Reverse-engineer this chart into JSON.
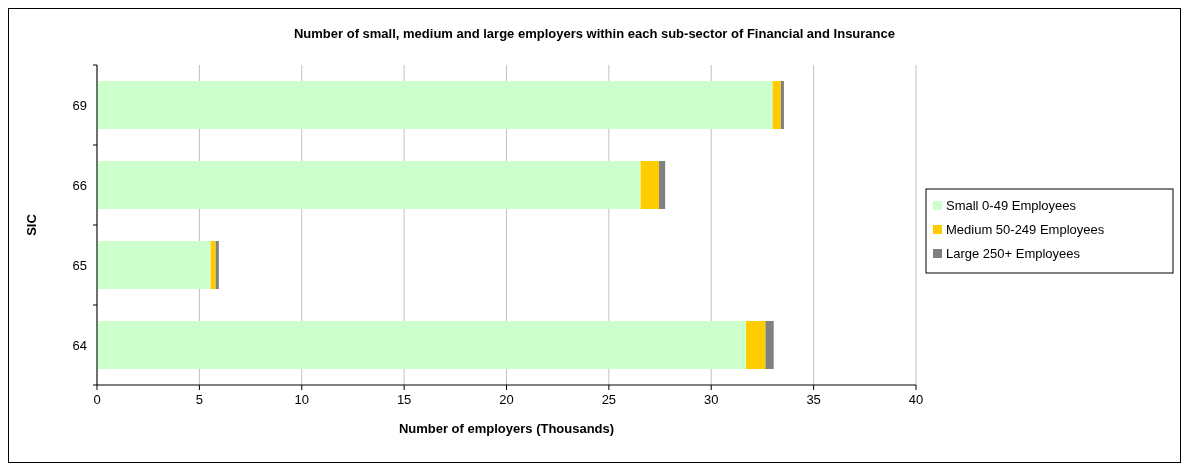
{
  "chart_data": {
    "type": "bar",
    "orientation": "horizontal",
    "stacked": true,
    "title": "Number of small, medium and large employers within each sub-sector of Financial and Insurance",
    "xlabel": "Number of employers (Thousands)",
    "ylabel": "SIC",
    "categories": [
      "69",
      "66",
      "65",
      "64"
    ],
    "series": [
      {
        "name": "Small 0-49 Employees",
        "color": "#ccffcc",
        "values": [
          33.0,
          26.55,
          5.55,
          31.7
        ]
      },
      {
        "name": "Medium 50-249 Employees",
        "color": "#ffcc00",
        "values": [
          0.4,
          0.9,
          0.25,
          0.95
        ]
      },
      {
        "name": "Large 250+ Employees",
        "color": "#808080",
        "values": [
          0.15,
          0.3,
          0.15,
          0.4
        ]
      }
    ],
    "xlim": [
      0,
      40
    ],
    "xticks": [
      0,
      5,
      10,
      15,
      20,
      25,
      30,
      35,
      40
    ],
    "grid": "x",
    "legend": "right"
  }
}
